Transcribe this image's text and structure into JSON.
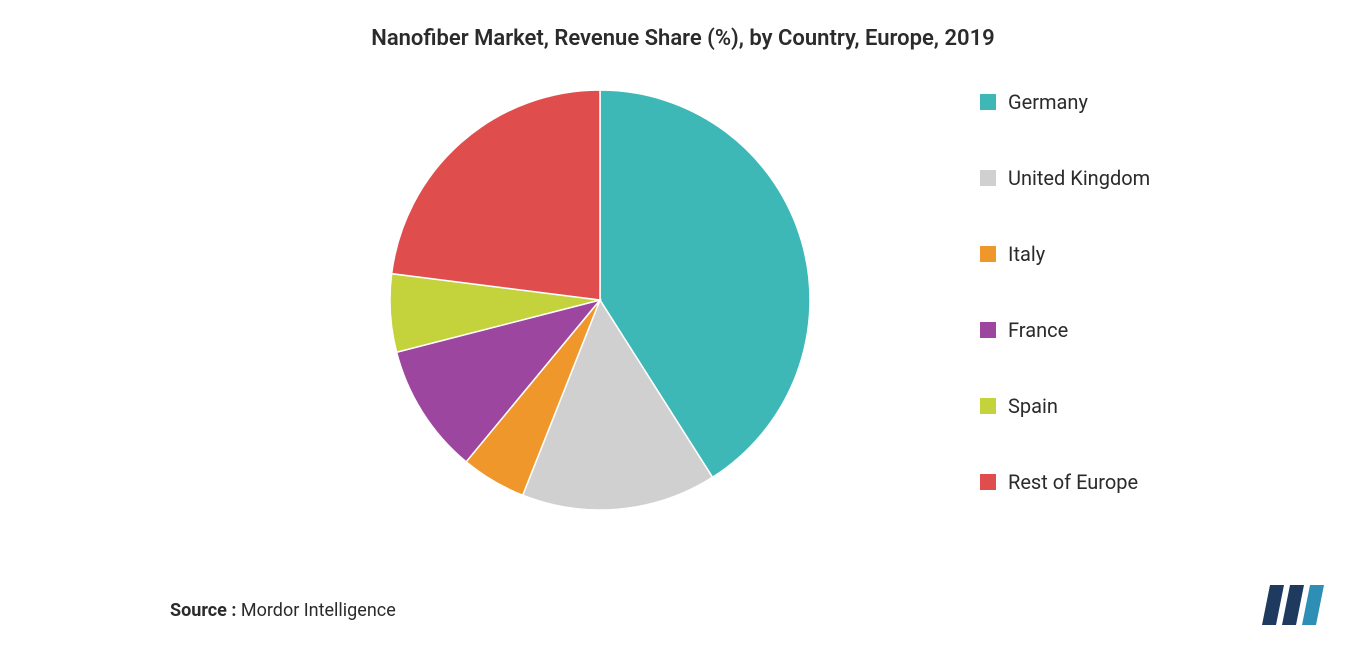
{
  "title": "Nanofiber Market, Revenue Share (%), by Country, Europe, 2019",
  "title_fontsize": 22,
  "title_color": "#2b2b2b",
  "background_color": "#ffffff",
  "chart": {
    "type": "pie",
    "start_angle_deg": 90,
    "direction": "clockwise",
    "stroke_color": "#ffffff",
    "stroke_width": 1.5,
    "radius": 210,
    "slices": [
      {
        "label": "Germany",
        "value": 41,
        "color": "#3eb7b7"
      },
      {
        "label": "United Kingdom",
        "value": 15,
        "color": "#d0d0d0"
      },
      {
        "label": "Italy",
        "value": 5,
        "color": "#f0972b"
      },
      {
        "label": "France",
        "value": 10,
        "color": "#9d46a0"
      },
      {
        "label": "Spain",
        "value": 6,
        "color": "#c4d23b"
      },
      {
        "label": "Rest of Europe",
        "value": 23,
        "color": "#e04d4d"
      }
    ]
  },
  "legend": {
    "items": [
      {
        "label": "Germany",
        "color": "#3eb7b7"
      },
      {
        "label": "United Kingdom",
        "color": "#d0d0d0"
      },
      {
        "label": "Italy",
        "color": "#f0972b"
      },
      {
        "label": "France",
        "color": "#9d46a0"
      },
      {
        "label": "Spain",
        "color": "#c4d23b"
      },
      {
        "label": "Rest of Europe",
        "color": "#e04d4d"
      }
    ],
    "swatch_size": 16,
    "label_fontsize": 20,
    "label_color": "#2b2b2b",
    "gap": 52
  },
  "source": {
    "label": "Source",
    "value": "Mordor Intelligence",
    "label_fontsize": 18,
    "label_weight": 700,
    "value_weight": 400,
    "text_color": "#2b2b2b"
  },
  "logo": {
    "bar_color_left": "#1e3a5f",
    "bar_color_mid": "#1e3a5f",
    "bar_color_right": "#2d8fb5"
  }
}
